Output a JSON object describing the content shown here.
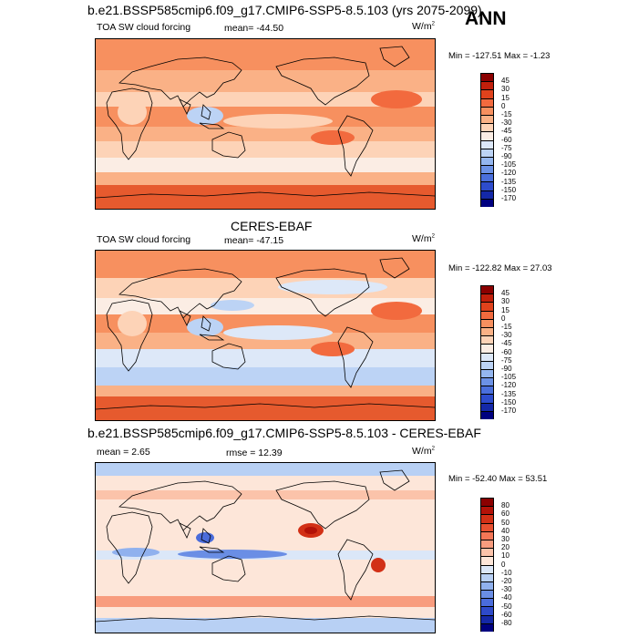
{
  "season": "ANN",
  "panels": [
    {
      "heading": "b.e21.BSSP585cmip6.f09_g17.CMIP6-SSP5-8.5.103 (yrs 2075-2099)",
      "variable": "TOA SW cloud forcing",
      "stat_text": "mean= -44.50",
      "units_base": "W/m",
      "units_exp": "2",
      "minmax": "Min = -127.51 Max = -1.23",
      "levels": [
        "45",
        "30",
        "15",
        "0",
        "-15",
        "-30",
        "-45",
        "-60",
        "-75",
        "-90",
        "-105",
        "-120",
        "-135",
        "-150",
        "-170"
      ],
      "colors": [
        "#8b0000",
        "#c11f0b",
        "#e0421c",
        "#f26a3e",
        "#f7905f",
        "#fab186",
        "#fdd3b7",
        "#fbede4",
        "#dde8f8",
        "#bcd3f5",
        "#94b6ef",
        "#6c92e6",
        "#4a6fdc",
        "#2d4ccd",
        "#1428a8",
        "#000080"
      ],
      "map_pattern": "model"
    },
    {
      "heading": "CERES-EBAF",
      "variable": "TOA SW cloud forcing",
      "stat_text": "mean= -47.15",
      "units_base": "W/m",
      "units_exp": "2",
      "minmax": "Min = -122.82 Max = 27.03",
      "levels": [
        "45",
        "30",
        "15",
        "0",
        "-15",
        "-30",
        "-45",
        "-60",
        "-75",
        "-90",
        "-105",
        "-120",
        "-135",
        "-150",
        "-170"
      ],
      "colors": [
        "#8b0000",
        "#c11f0b",
        "#e0421c",
        "#f26a3e",
        "#f7905f",
        "#fab186",
        "#fdd3b7",
        "#fbede4",
        "#dde8f8",
        "#bcd3f5",
        "#94b6ef",
        "#6c92e6",
        "#4a6fdc",
        "#2d4ccd",
        "#1428a8",
        "#000080"
      ],
      "map_pattern": "obs"
    },
    {
      "heading": "b.e21.BSSP585cmip6.f09_g17.CMIP6-SSP5-8.5.103 - CERES-EBAF",
      "mean_text": "mean =   2.65",
      "rmse_text": "rmse =  12.39",
      "units_base": "W/m",
      "units_exp": "2",
      "minmax": "Min = -52.40 Max =  53.51",
      "levels": [
        "80",
        "60",
        "50",
        "40",
        "30",
        "20",
        "10",
        "0",
        "-10",
        "-20",
        "-30",
        "-40",
        "-50",
        "-60",
        "-80"
      ],
      "colors": [
        "#8b0000",
        "#b31208",
        "#d23016",
        "#e75030",
        "#f47656",
        "#f89c7e",
        "#fbc3aa",
        "#fde6d9",
        "#dbe7f8",
        "#b8d0f4",
        "#90b1ee",
        "#6a8ee5",
        "#4a6cdb",
        "#2e4ac9",
        "#1528a7",
        "#000080"
      ],
      "map_pattern": "diff"
    }
  ]
}
